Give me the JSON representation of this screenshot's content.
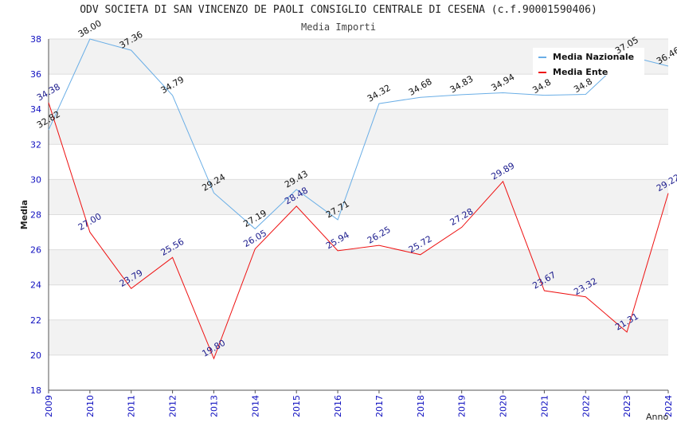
{
  "colors": {
    "nazionale": "#6aaee6",
    "ente": "#ee1111",
    "nazionale_label": "#111111",
    "ente_label": "#1a1a8c",
    "tick": "#1010c0",
    "band": "#f2f2f2",
    "grid": "#dddddd"
  },
  "chart_data": {
    "type": "line",
    "title": "ODV SOCIETA DI SAN VINCENZO DE PAOLI CONSIGLIO CENTRALE DI CESENA (c.f.90001590406)",
    "subtitle": "Media Importi",
    "xlabel": "Anno",
    "ylabel": "Media",
    "ylim": [
      18,
      38
    ],
    "yticks": [
      "18",
      "20",
      "22",
      "24",
      "26",
      "28",
      "30",
      "32",
      "34",
      "36",
      "38"
    ],
    "categories": [
      "2009",
      "2010",
      "2011",
      "2012",
      "2013",
      "2014",
      "2015",
      "2016",
      "2017",
      "2018",
      "2019",
      "2020",
      "2021",
      "2022",
      "2023",
      "2024"
    ],
    "legend_position": "top-right",
    "series": [
      {
        "name": "Media Nazionale",
        "values": [
          32.82,
          38.0,
          37.36,
          34.79,
          29.24,
          27.19,
          29.43,
          27.71,
          34.32,
          34.68,
          34.83,
          34.94,
          34.8,
          34.85,
          37.05,
          36.46
        ],
        "labels": [
          "32.82",
          "38.00",
          "37.36",
          "34.79",
          "29.24",
          "27.19",
          "29.43",
          "27.71",
          "34.32",
          "34.68",
          "34.83",
          "34.94",
          "34.8",
          "34.8",
          "37.05",
          "36.46"
        ]
      },
      {
        "name": "Media Ente",
        "values": [
          34.38,
          27.0,
          23.79,
          25.56,
          19.8,
          26.05,
          28.48,
          25.94,
          26.25,
          25.72,
          27.28,
          29.89,
          23.67,
          23.32,
          21.31,
          29.22
        ],
        "labels": [
          "34.38",
          "27.00",
          "23.79",
          "25.56",
          "19.80",
          "26.05",
          "28.48",
          "25.94",
          "26.25",
          "25.72",
          "27.28",
          "29.89",
          "23.67",
          "23.32",
          "21.31",
          "29.22"
        ]
      }
    ]
  }
}
